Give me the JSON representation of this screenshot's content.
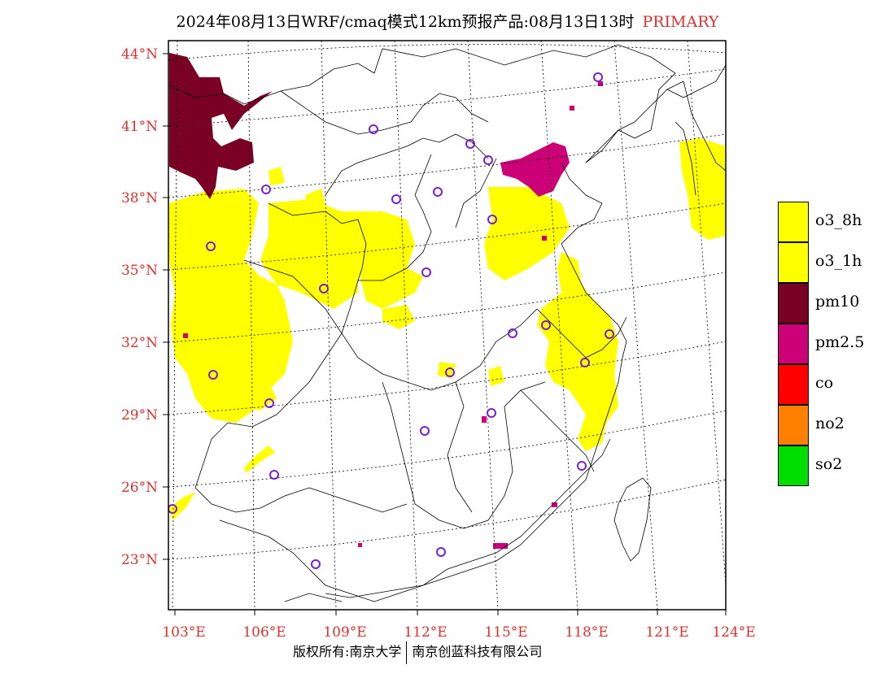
{
  "title": {
    "main": "2024年08月13日WRF/cmaq模式12km预报产品:08月13日13时",
    "tag": "PRIMARY"
  },
  "footer": {
    "left": "版权所有:南京大学",
    "right": "南京创蓝科技有限公司"
  },
  "axes": {
    "lat_labels": [
      "44°N",
      "41°N",
      "38°N",
      "35°N",
      "32°N",
      "29°N",
      "26°N",
      "23°N"
    ],
    "lon_labels": [
      "103°E",
      "106°E",
      "109°E",
      "112°E",
      "115°E",
      "118°E",
      "121°E",
      "124°E"
    ],
    "label_color": "#e03030"
  },
  "legend": [
    {
      "label": "o3_8h",
      "color": "#ffff00"
    },
    {
      "label": "o3_1h",
      "color": "#ffff00"
    },
    {
      "label": "pm10",
      "color": "#7a0026"
    },
    {
      "label": "pm2.5",
      "color": "#cc0077"
    },
    {
      "label": "co",
      "color": "#ff0000"
    },
    {
      "label": "no2",
      "color": "#ff8000"
    },
    {
      "label": "so2",
      "color": "#00dd00"
    }
  ],
  "station_marker_color": "#7b1fd6"
}
